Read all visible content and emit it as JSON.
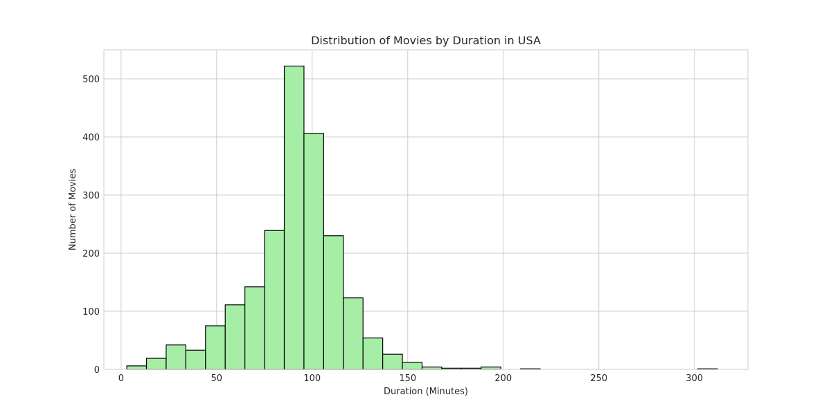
{
  "chart_data": {
    "type": "bar",
    "title": "Distribution of Movies by Duration in USA",
    "xlabel": "Duration (Minutes)",
    "ylabel": "Number of Movies",
    "xlim": [
      -9,
      328
    ],
    "ylim": [
      0,
      550
    ],
    "xticks": [
      0,
      50,
      100,
      150,
      200,
      250,
      300
    ],
    "yticks": [
      0,
      100,
      200,
      300,
      400,
      500
    ],
    "grid": true,
    "bar_color": "#a6eea6",
    "bar_edge_color": "#000000",
    "bins": [
      {
        "x0": 3,
        "x1": 13.3,
        "value": 6
      },
      {
        "x0": 13.3,
        "x1": 23.6,
        "value": 19
      },
      {
        "x0": 23.6,
        "x1": 33.9,
        "value": 42
      },
      {
        "x0": 33.9,
        "x1": 44.2,
        "value": 33
      },
      {
        "x0": 44.2,
        "x1": 54.5,
        "value": 75
      },
      {
        "x0": 54.5,
        "x1": 64.8,
        "value": 111
      },
      {
        "x0": 64.8,
        "x1": 75.1,
        "value": 142
      },
      {
        "x0": 75.1,
        "x1": 85.4,
        "value": 239
      },
      {
        "x0": 85.4,
        "x1": 95.7,
        "value": 522
      },
      {
        "x0": 95.7,
        "x1": 106.0,
        "value": 406
      },
      {
        "x0": 106.0,
        "x1": 116.3,
        "value": 230
      },
      {
        "x0": 116.3,
        "x1": 126.6,
        "value": 123
      },
      {
        "x0": 126.6,
        "x1": 136.9,
        "value": 54
      },
      {
        "x0": 136.9,
        "x1": 147.2,
        "value": 26
      },
      {
        "x0": 147.2,
        "x1": 157.5,
        "value": 12
      },
      {
        "x0": 157.5,
        "x1": 167.8,
        "value": 4
      },
      {
        "x0": 167.8,
        "x1": 178.1,
        "value": 2
      },
      {
        "x0": 178.1,
        "x1": 188.4,
        "value": 2
      },
      {
        "x0": 188.4,
        "x1": 198.7,
        "value": 4
      },
      {
        "x0": 198.7,
        "x1": 209.0,
        "value": 0
      },
      {
        "x0": 209.0,
        "x1": 219.3,
        "value": 1
      },
      {
        "x0": 219.3,
        "x1": 229.6,
        "value": 0
      },
      {
        "x0": 229.6,
        "x1": 239.9,
        "value": 0
      },
      {
        "x0": 239.9,
        "x1": 250.2,
        "value": 0
      },
      {
        "x0": 250.2,
        "x1": 260.5,
        "value": 0
      },
      {
        "x0": 260.5,
        "x1": 270.8,
        "value": 0
      },
      {
        "x0": 270.8,
        "x1": 281.1,
        "value": 0
      },
      {
        "x0": 281.1,
        "x1": 291.4,
        "value": 0
      },
      {
        "x0": 291.4,
        "x1": 301.7,
        "value": 0
      },
      {
        "x0": 301.7,
        "x1": 312.0,
        "value": 1
      }
    ]
  }
}
